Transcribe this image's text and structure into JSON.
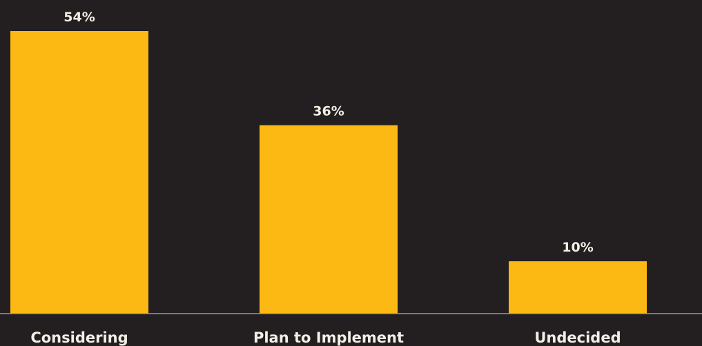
{
  "chart_data": {
    "type": "bar",
    "categories": [
      "Considering",
      "Plan to Implement",
      "Undecided"
    ],
    "values": [
      54,
      36,
      10
    ],
    "value_labels": [
      "54%",
      "36%",
      "10%"
    ],
    "ylim": [
      0,
      54
    ],
    "grid": false,
    "legend": "none",
    "bar_color": "#fdb913",
    "background_color": "#231f20",
    "label_color": "#f4efe6",
    "baseline_color": "#9a9a9a"
  }
}
